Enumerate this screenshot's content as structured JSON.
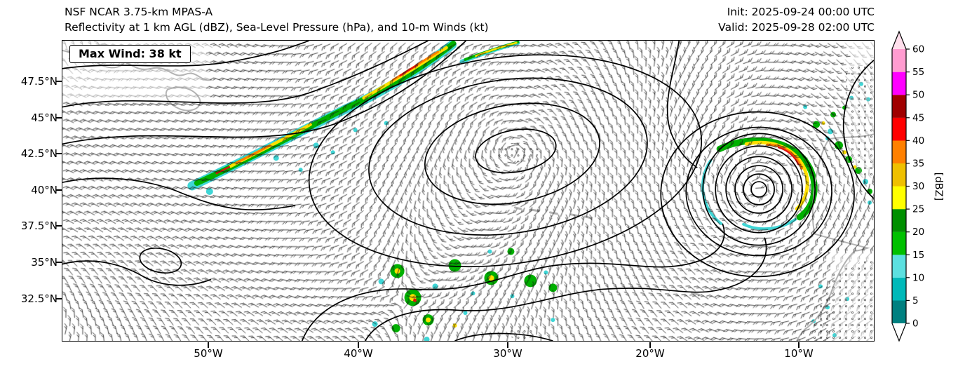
{
  "header": {
    "model_title": "NSF NCAR 3.75-km MPAS-A",
    "fields_title": "Reflectivity at 1 km AGL (dBZ), Sea-Level Pressure (hPa), and 10-m Winds (kt)",
    "init_time": "Init: 2025-09-24 00:00 UTC",
    "valid_time": "Valid: 2025-09-28 02:00 UTC"
  },
  "map": {
    "max_wind_label": "Max Wind: 38 kt",
    "y_ticks": [
      "47.5°N",
      "45°N",
      "42.5°N",
      "40°N",
      "37.5°N",
      "35°N",
      "32.5°N"
    ],
    "x_ticks": [
      "50°W",
      "40°W",
      "30°W",
      "20°W",
      "10°W"
    ]
  },
  "colorbar": {
    "label": "[dBZ]",
    "tick_values": [
      0,
      5,
      10,
      15,
      20,
      25,
      30,
      35,
      40,
      45,
      50,
      55,
      60
    ],
    "segment_colors": [
      "#008080",
      "#00b9b9",
      "#5ce0e0",
      "#00c000",
      "#008f00",
      "#ffff00",
      "#efc000",
      "#ff8000",
      "#ff0000",
      "#a00000",
      "#ff00ff",
      "#ff9cd0"
    ],
    "below_min_color": "#ffffff",
    "above_max_color": "#ffdfec"
  }
}
